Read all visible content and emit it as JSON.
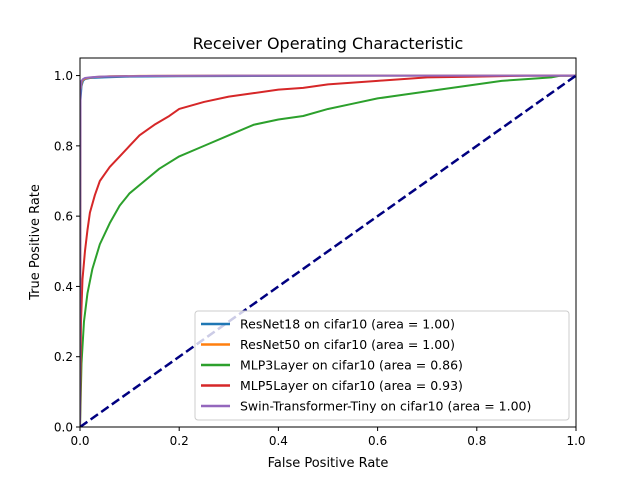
{
  "chart_data": {
    "type": "line",
    "title": "Receiver Operating Characteristic",
    "xlabel": "False Positive Rate",
    "ylabel": "True Positive Rate",
    "xlim": [
      0,
      1
    ],
    "ylim": [
      0,
      1.05
    ],
    "xticks": [
      0.0,
      0.2,
      0.4,
      0.6,
      0.8,
      1.0
    ],
    "yticks": [
      0.0,
      0.2,
      0.4,
      0.6,
      0.8,
      1.0
    ],
    "xtick_labels": [
      "0.0",
      "0.2",
      "0.4",
      "0.6",
      "0.8",
      "1.0"
    ],
    "ytick_labels": [
      "0.0",
      "0.2",
      "0.4",
      "0.6",
      "0.8",
      "1.0"
    ],
    "grid": false,
    "legend_position": "lower-right",
    "series": [
      {
        "name": "ResNet18 on cifar10 (area = 1.00)",
        "color": "#1f77b4",
        "x": [
          0,
          0.001,
          0.003,
          0.006,
          0.01,
          0.02,
          0.05,
          0.1,
          0.2,
          0.43,
          0.6,
          1.0
        ],
        "y": [
          0,
          0.93,
          0.97,
          0.985,
          0.99,
          0.993,
          0.995,
          0.997,
          0.998,
          0.999,
          1.0,
          1.0
        ]
      },
      {
        "name": "ResNet50 on cifar10 (area = 1.00)",
        "color": "#ff7f0e",
        "x": [
          0,
          0.001,
          0.004,
          0.008,
          0.015,
          0.03,
          0.06,
          0.12,
          0.3,
          0.6,
          1.0
        ],
        "y": [
          0,
          0.96,
          0.985,
          0.99,
          0.993,
          0.996,
          0.998,
          0.999,
          1.0,
          1.0,
          1.0
        ]
      },
      {
        "name": "MLP3Layer on cifar10 (area = 0.86)",
        "color": "#2ca02c",
        "x": [
          0,
          0.003,
          0.008,
          0.015,
          0.025,
          0.04,
          0.06,
          0.08,
          0.1,
          0.13,
          0.16,
          0.2,
          0.25,
          0.3,
          0.35,
          0.4,
          0.45,
          0.5,
          0.55,
          0.6,
          0.65,
          0.7,
          0.75,
          0.8,
          0.85,
          0.9,
          0.95,
          0.97,
          1.0
        ],
        "y": [
          0,
          0.18,
          0.3,
          0.38,
          0.45,
          0.52,
          0.58,
          0.63,
          0.665,
          0.7,
          0.735,
          0.77,
          0.8,
          0.83,
          0.86,
          0.875,
          0.885,
          0.905,
          0.92,
          0.935,
          0.945,
          0.955,
          0.965,
          0.975,
          0.985,
          0.99,
          0.995,
          1.0,
          1.0
        ]
      },
      {
        "name": "MLP5Layer on cifar10 (area = 0.93)",
        "color": "#d62728",
        "x": [
          0,
          0.002,
          0.005,
          0.01,
          0.015,
          0.02,
          0.03,
          0.04,
          0.05,
          0.06,
          0.08,
          0.1,
          0.12,
          0.15,
          0.18,
          0.2,
          0.25,
          0.3,
          0.35,
          0.4,
          0.45,
          0.5,
          0.55,
          0.6,
          0.65,
          0.7,
          0.8,
          0.9,
          1.0
        ],
        "y": [
          0,
          0.3,
          0.42,
          0.5,
          0.56,
          0.61,
          0.66,
          0.7,
          0.72,
          0.74,
          0.77,
          0.8,
          0.83,
          0.86,
          0.885,
          0.905,
          0.925,
          0.94,
          0.95,
          0.96,
          0.965,
          0.975,
          0.98,
          0.985,
          0.99,
          0.995,
          0.997,
          1.0,
          1.0
        ]
      },
      {
        "name": "Swin-Transformer-Tiny on cifar10 (area = 1.00)",
        "color": "#9467bd",
        "x": [
          0,
          0.001,
          0.003,
          0.006,
          0.01,
          0.02,
          0.04,
          0.08,
          0.15,
          0.3,
          0.5,
          1.0
        ],
        "y": [
          0,
          0.96,
          0.985,
          0.99,
          0.993,
          0.995,
          0.997,
          0.998,
          0.999,
          1.0,
          1.0,
          1.0
        ]
      }
    ],
    "reference_line": {
      "color": "#000080",
      "style": "dashed",
      "x": [
        0,
        1
      ],
      "y": [
        0,
        1
      ]
    }
  }
}
